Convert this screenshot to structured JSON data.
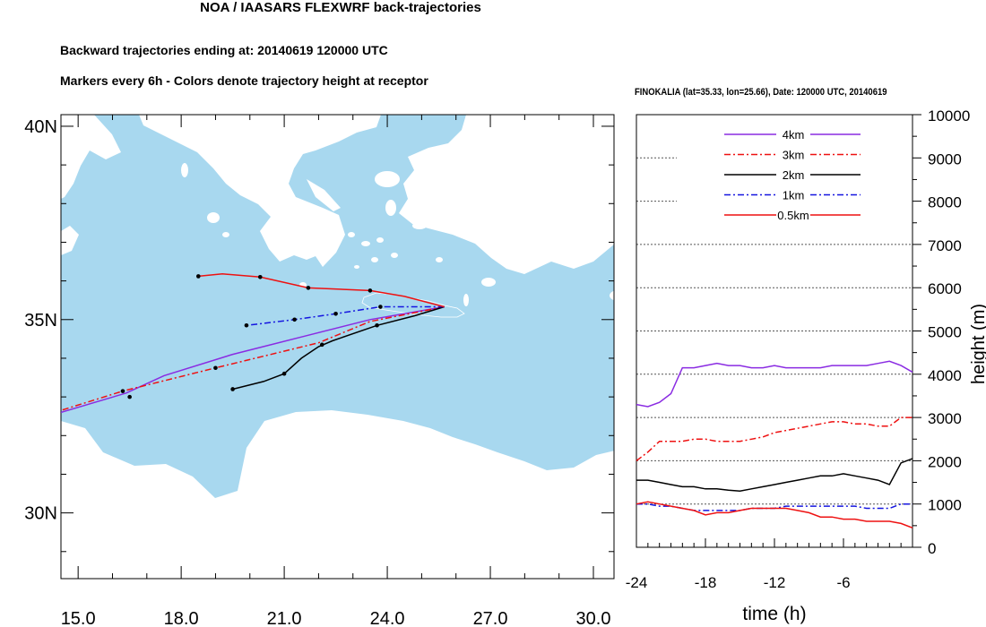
{
  "page": {
    "title": "NOA / IAASARS FLEXWRF back-trajectories",
    "subtitle1": "Backward trajectories ending at: 20140619  120000 UTC",
    "subtitle2": "Markers every 6h - Colors denote trajectory height at receptor"
  },
  "colors": {
    "sea": "#a8d8ef",
    "land": "#ffffff",
    "purple": "#8a2be2",
    "red": "#ee1111",
    "black": "#000000",
    "blue": "#1515e0"
  },
  "chart_data": [
    {
      "type": "line",
      "title": "Trajectory map",
      "x_ticks": [
        "15.0",
        "18.0",
        "21.0",
        "24.0",
        "27.0",
        "30.0"
      ],
      "y_ticks": [
        "30N",
        "35N",
        "40N"
      ],
      "xlim": [
        14.5,
        30.6
      ],
      "ylim": [
        28.3,
        40.3
      ],
      "series": [
        {
          "name": "4km",
          "color": "#8a2be2",
          "style": "solid",
          "path": [
            [
              25.66,
              35.33
            ],
            [
              23.5,
              35.0
            ],
            [
              21.5,
              34.55
            ],
            [
              19.5,
              34.1
            ],
            [
              17.5,
              33.55
            ],
            [
              16.4,
              33.1
            ],
            [
              14.5,
              32.6
            ]
          ],
          "markers": []
        },
        {
          "name": "3km",
          "color": "#ee1111",
          "style": "dashdot",
          "path": [
            [
              25.66,
              35.33
            ],
            [
              23.5,
              34.95
            ],
            [
              22.0,
              34.4
            ],
            [
              19.0,
              33.75
            ],
            [
              16.3,
              33.15
            ],
            [
              14.5,
              32.65
            ]
          ],
          "markers": [
            [
              19.0,
              33.75
            ],
            [
              16.3,
              33.15
            ]
          ]
        },
        {
          "name": "2km",
          "color": "#000000",
          "style": "solid",
          "path": [
            [
              25.66,
              35.33
            ],
            [
              24.8,
              35.1
            ],
            [
              23.7,
              34.85
            ],
            [
              22.4,
              34.45
            ],
            [
              22.0,
              34.3
            ],
            [
              21.5,
              34.0
            ],
            [
              21.0,
              33.6
            ],
            [
              20.4,
              33.4
            ],
            [
              19.5,
              33.2
            ]
          ],
          "markers": [
            [
              23.7,
              34.85
            ],
            [
              22.1,
              34.35
            ],
            [
              21.0,
              33.6
            ],
            [
              19.5,
              33.2
            ],
            [
              16.5,
              33.0
            ]
          ]
        },
        {
          "name": "1km",
          "color": "#1515e0",
          "style": "dashdot",
          "path": [
            [
              25.66,
              35.33
            ],
            [
              23.8,
              35.33
            ],
            [
              22.5,
              35.15
            ],
            [
              21.3,
              35.0
            ],
            [
              19.9,
              34.85
            ]
          ],
          "markers": [
            [
              23.8,
              35.33
            ],
            [
              22.5,
              35.15
            ],
            [
              21.3,
              35.0
            ],
            [
              19.9,
              34.85
            ]
          ]
        },
        {
          "name": "0.5km",
          "color": "#ee1111",
          "style": "solid",
          "path": [
            [
              25.66,
              35.33
            ],
            [
              24.5,
              35.6
            ],
            [
              23.5,
              35.75
            ],
            [
              21.7,
              35.82
            ],
            [
              20.3,
              36.1
            ],
            [
              19.2,
              36.18
            ],
            [
              18.5,
              36.12
            ]
          ],
          "markers": [
            [
              23.5,
              35.75
            ],
            [
              21.7,
              35.82
            ],
            [
              20.3,
              36.1
            ],
            [
              18.5,
              36.12
            ]
          ]
        }
      ]
    },
    {
      "type": "line",
      "title": "FINOKALIA (lat=35.33,  lon=25.66), Date: 120000 UTC, 20140619",
      "xlabel": "time (h)",
      "ylabel": "height (m)",
      "xlim": [
        -24,
        0
      ],
      "ylim": [
        0,
        10000
      ],
      "x_ticks": [
        "-24",
        "-18",
        "-12",
        "-6"
      ],
      "y_ticks": [
        "0",
        "1000",
        "2000",
        "3000",
        "4000",
        "5000",
        "6000",
        "7000",
        "8000",
        "9000",
        "10000"
      ],
      "legend": [
        "4km",
        "3km",
        "2km",
        "1km",
        "0.5km"
      ],
      "series": [
        {
          "name": "4km",
          "color": "#8a2be2",
          "style": "solid",
          "x": [
            -24,
            -23,
            -22,
            -21,
            -20,
            -19,
            -18,
            -17,
            -16,
            -15,
            -14,
            -13,
            -12,
            -11,
            -10,
            -9,
            -8,
            -7,
            -6,
            -5,
            -4,
            -3,
            -2,
            -1,
            0
          ],
          "y": [
            3300,
            3250,
            3350,
            3550,
            4150,
            4150,
            4200,
            4250,
            4200,
            4200,
            4150,
            4150,
            4200,
            4150,
            4150,
            4150,
            4150,
            4200,
            4200,
            4200,
            4200,
            4250,
            4300,
            4200,
            4050
          ]
        },
        {
          "name": "3km",
          "color": "#ee1111",
          "style": "dashdot",
          "x": [
            -24,
            -23,
            -22,
            -21,
            -20,
            -19,
            -18,
            -17,
            -16,
            -15,
            -14,
            -13,
            -12,
            -11,
            -10,
            -9,
            -8,
            -7,
            -6,
            -5,
            -4,
            -3,
            -2,
            -1,
            0
          ],
          "y": [
            2000,
            2200,
            2450,
            2450,
            2450,
            2500,
            2500,
            2450,
            2450,
            2450,
            2500,
            2550,
            2650,
            2700,
            2750,
            2800,
            2850,
            2900,
            2900,
            2850,
            2850,
            2800,
            2800,
            3000,
            3000
          ]
        },
        {
          "name": "2km",
          "color": "#000000",
          "style": "solid",
          "x": [
            -24,
            -23,
            -22,
            -21,
            -20,
            -19,
            -18,
            -17,
            -16,
            -15,
            -14,
            -13,
            -12,
            -11,
            -10,
            -9,
            -8,
            -7,
            -6,
            -5,
            -4,
            -3,
            -2,
            -1,
            0
          ],
          "y": [
            1550,
            1550,
            1500,
            1450,
            1400,
            1400,
            1350,
            1350,
            1320,
            1300,
            1350,
            1400,
            1450,
            1500,
            1550,
            1600,
            1650,
            1650,
            1700,
            1650,
            1600,
            1550,
            1450,
            1950,
            2050
          ]
        },
        {
          "name": "1km",
          "color": "#1515e0",
          "style": "dashdot",
          "x": [
            -24,
            -23,
            -22,
            -21,
            -20,
            -19,
            -18,
            -17,
            -16,
            -15,
            -14,
            -13,
            -12,
            -11,
            -10,
            -9,
            -8,
            -7,
            -6,
            -5,
            -4,
            -3,
            -2,
            -1,
            0
          ],
          "y": [
            1000,
            1000,
            950,
            950,
            900,
            850,
            850,
            850,
            850,
            850,
            900,
            900,
            900,
            950,
            950,
            950,
            950,
            950,
            950,
            950,
            900,
            900,
            900,
            1000,
            1000
          ]
        },
        {
          "name": "0.5km",
          "color": "#ee1111",
          "style": "solid",
          "x": [
            -24,
            -23,
            -22,
            -21,
            -20,
            -19,
            -18,
            -17,
            -16,
            -15,
            -14,
            -13,
            -12,
            -11,
            -10,
            -9,
            -8,
            -7,
            -6,
            -5,
            -4,
            -3,
            -2,
            -1,
            0
          ],
          "y": [
            1000,
            1050,
            1000,
            950,
            900,
            850,
            750,
            800,
            800,
            850,
            900,
            900,
            900,
            900,
            850,
            800,
            700,
            700,
            650,
            650,
            600,
            600,
            600,
            550,
            450
          ]
        }
      ]
    }
  ]
}
